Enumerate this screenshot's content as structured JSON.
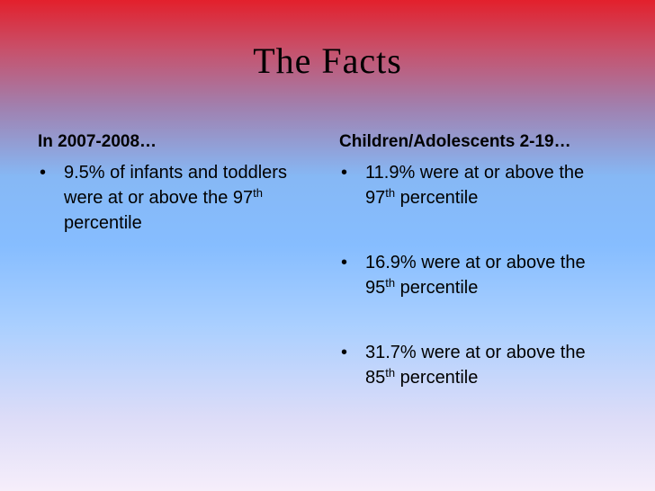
{
  "title": "The Facts",
  "columns": [
    {
      "heading": "In 2007-2008…",
      "bullets": [
        {
          "text": "9.5% of infants and toddlers were at or above the 97",
          "sup": "th",
          "tail": "percentile"
        }
      ]
    },
    {
      "heading": "Children/Adolescents 2-19…",
      "bullets": [
        {
          "text": "11.9% were at or above the 97",
          "sup": "th",
          "tail": "percentile"
        },
        {
          "text": "16.9% were at or above the 95",
          "sup": "th",
          "tail": "percentile"
        },
        {
          "text": "31.7% were at or above the 85",
          "sup": "th",
          "tail": "percentile"
        }
      ]
    }
  ]
}
